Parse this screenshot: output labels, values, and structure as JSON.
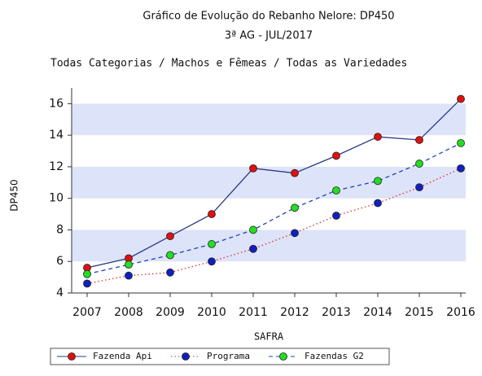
{
  "chart_data": {
    "type": "line",
    "title": "Gráfico de Evolução do Rebanho Nelore: DP450",
    "subtitle": "3ª AG - JUL/2017",
    "filter": "Todas Categorias / Machos e Fêmeas / Todas as Variedades",
    "x_label": "SAFRA",
    "y_label": "DP450",
    "categories": [
      "2007",
      "2008",
      "2009",
      "2010",
      "2011",
      "2012",
      "2013",
      "2014",
      "2015",
      "2016"
    ],
    "series": [
      {
        "name": "Fazenda Api",
        "color": "#e01010",
        "line_color": "#2a3a8a",
        "line_style": "solid",
        "values": [
          5.6,
          6.2,
          7.6,
          9.0,
          11.9,
          11.6,
          12.7,
          13.9,
          13.7,
          16.3
        ]
      },
      {
        "name": "Programa",
        "color": "#1020c0",
        "line_color": "#e03030",
        "line_style": "dotted",
        "values": [
          4.6,
          5.1,
          5.3,
          6.0,
          6.8,
          7.8,
          8.9,
          9.7,
          10.7,
          11.9
        ]
      },
      {
        "name": "Fazendas G2",
        "color": "#20e020",
        "line_color": "#2040c0",
        "line_style": "dashed",
        "values": [
          5.2,
          5.8,
          6.4,
          7.1,
          8.0,
          9.4,
          10.5,
          11.1,
          12.2,
          13.5
        ]
      }
    ],
    "ylim": [
      4,
      17
    ],
    "yticks": [
      4,
      6,
      8,
      10,
      12,
      14,
      16
    ],
    "band_colors": [
      "#ffffff",
      "#dde3f8"
    ],
    "legend": "bottom"
  }
}
